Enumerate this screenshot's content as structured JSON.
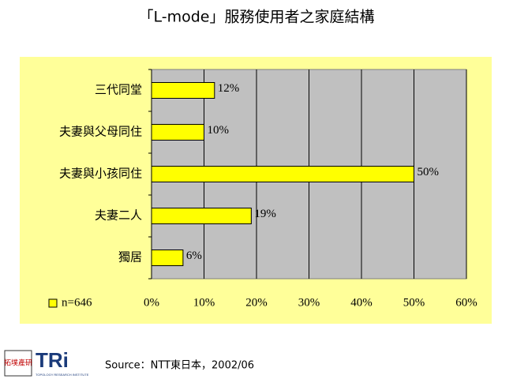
{
  "chart_data": {
    "type": "hbar",
    "title": "「L-mode」服務使用者之家庭結構",
    "categories": [
      "三代同堂",
      "夫妻與父母同住",
      "夫妻與小孩同住",
      "夫妻二人",
      "獨居"
    ],
    "series": [
      {
        "name": "n=646",
        "color": "#ffff00",
        "values": [
          12,
          10,
          50,
          19,
          6
        ],
        "value_labels": [
          "12%",
          "10%",
          "50%",
          "19%",
          "6%"
        ]
      }
    ],
    "xlim": [
      0,
      60
    ],
    "xticks": [
      {
        "value": 0,
        "label": "0%"
      },
      {
        "value": 10,
        "label": "10%"
      },
      {
        "value": 20,
        "label": "20%"
      },
      {
        "value": 30,
        "label": "30%"
      },
      {
        "value": 40,
        "label": "40%"
      },
      {
        "value": 50,
        "label": "50%"
      },
      {
        "value": 60,
        "label": "60%"
      }
    ],
    "grid": true
  },
  "footer": {
    "source": "Source：NTT東日本，2002/06",
    "logo_chars": "拓墣產研",
    "logo_name": "TRi",
    "logo_subtitle": "TOPOLOGY RESEARCH INSTITUTE"
  }
}
